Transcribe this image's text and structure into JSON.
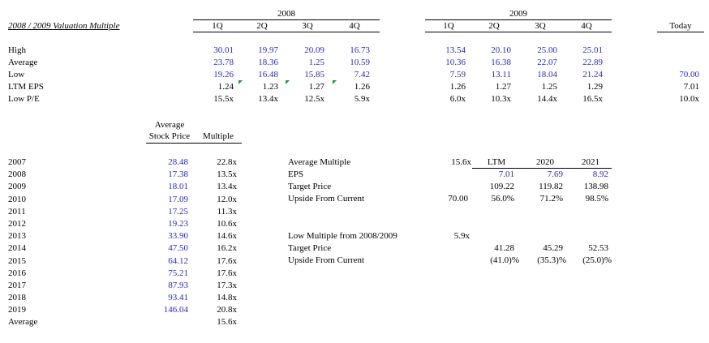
{
  "title": "2008 / 2009 Valuation Multiple",
  "year2008": "2008",
  "year2009": "2009",
  "quarters": [
    "1Q",
    "2Q",
    "3Q",
    "4Q"
  ],
  "today_label": "Today",
  "rows": [
    {
      "label": "High",
      "y2008": [
        "30.01",
        "19.97",
        "20.09",
        "16.73"
      ],
      "y2009": [
        "13.54",
        "20.10",
        "25.00",
        "25.01"
      ],
      "today": ""
    },
    {
      "label": "Average",
      "y2008": [
        "23.78",
        "18.36",
        "1.25",
        "10.59"
      ],
      "y2009": [
        "10.36",
        "16.38",
        "22.07",
        "22.89"
      ],
      "today": ""
    },
    {
      "label": "Low",
      "y2008": [
        "19.26",
        "16.48",
        "15.85",
        "7.42"
      ],
      "y2009": [
        "7.59",
        "13.11",
        "18.04",
        "21.24"
      ],
      "today": "70.00"
    },
    {
      "label": "LTM EPS",
      "y2008": [
        "1.24",
        "1.23",
        "1.27",
        "1.26"
      ],
      "y2009": [
        "1.26",
        "1.27",
        "1.25",
        "1.29"
      ],
      "today": "7.01"
    },
    {
      "label": "Low P/E",
      "y2008": [
        "15.5x",
        "13.4x",
        "12.5x",
        "5.9x"
      ],
      "y2009": [
        "6.0x",
        "10.3x",
        "14.4x",
        "16.5x"
      ],
      "today": "10.0x"
    }
  ],
  "hist_header": {
    "col1_line1": "Average",
    "col1_line2": "Stock Price",
    "col2": "Multiple"
  },
  "history": [
    {
      "year": "2007",
      "price": "28.48",
      "multiple": "22.8x"
    },
    {
      "year": "2008",
      "price": "17.38",
      "multiple": "13.5x"
    },
    {
      "year": "2009",
      "price": "18.01",
      "multiple": "13.4x"
    },
    {
      "year": "2010",
      "price": "17.09",
      "multiple": "12.0x"
    },
    {
      "year": "2011",
      "price": "17.25",
      "multiple": "11.3x"
    },
    {
      "year": "2012",
      "price": "19.23",
      "multiple": "10.6x"
    },
    {
      "year": "2013",
      "price": "33.90",
      "multiple": "14.6x"
    },
    {
      "year": "2014",
      "price": "47.50",
      "multiple": "16.2x"
    },
    {
      "year": "2015",
      "price": "64.12",
      "multiple": "17.6x"
    },
    {
      "year": "2016",
      "price": "75.21",
      "multiple": "17.6x"
    },
    {
      "year": "2017",
      "price": "87.93",
      "multiple": "17.3x"
    },
    {
      "year": "2018",
      "price": "93.41",
      "multiple": "14.8x"
    },
    {
      "year": "2019",
      "price": "146.04",
      "multiple": "20.8x"
    }
  ],
  "history_avg": {
    "label": "Average",
    "multiple": "15.6x"
  },
  "avg_block": {
    "label": "Average Multiple",
    "value": "15.6x",
    "cols": [
      "LTM",
      "2020",
      "2021"
    ],
    "eps_label": "EPS",
    "eps": [
      "7.01",
      "7.69",
      "8.92"
    ],
    "tp_label": "Target Price",
    "tp": [
      "109.22",
      "119.82",
      "138.98"
    ],
    "up_label": "Upside From Current",
    "current": "70.00",
    "up": [
      "56.0%",
      "71.2%",
      "98.5%"
    ]
  },
  "low_block": {
    "label": "Low Multiple from 2008/2009",
    "value": "5.9x",
    "tp_label": "Target Price",
    "tp": [
      "41.28",
      "45.29",
      "52.53"
    ],
    "up_label": "Upside From Current",
    "up": [
      "(41.0)%",
      "(35.3)%",
      "(25.0)%"
    ]
  }
}
